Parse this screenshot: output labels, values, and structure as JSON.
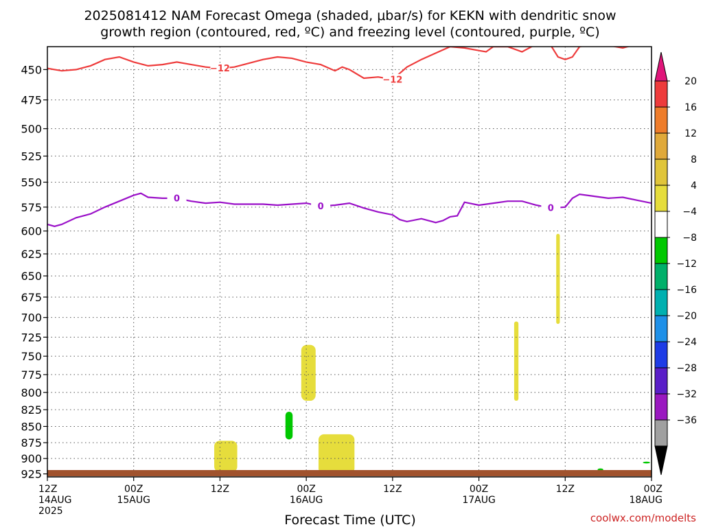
{
  "chart_data": {
    "type": "heatmap",
    "title_line1": "2025081412 NAM Forecast Omega (shaded, μbar/s) for KEKN with dendritic snow",
    "title_line2": "growth region (contoured, red, ºC) and freezing level (contoured, purple, ºC)",
    "xlabel": "Forecast Time (UTC)",
    "ylabel": "",
    "y_axis": {
      "scale": "log-pressure",
      "range_hPa": [
        930,
        432
      ],
      "ticks": [
        450,
        475,
        500,
        525,
        550,
        575,
        600,
        625,
        650,
        675,
        700,
        725,
        750,
        775,
        800,
        825,
        850,
        875,
        900,
        925
      ]
    },
    "x_axis": {
      "range_hours": [
        0,
        84
      ],
      "ticks": [
        {
          "hour": 0,
          "lines": [
            "12Z",
            "14AUG",
            "2025"
          ]
        },
        {
          "hour": 12,
          "lines": [
            "00Z",
            "15AUG"
          ]
        },
        {
          "hour": 24,
          "lines": [
            "12Z"
          ]
        },
        {
          "hour": 36,
          "lines": [
            "00Z",
            "16AUG"
          ]
        },
        {
          "hour": 48,
          "lines": [
            "12Z"
          ]
        },
        {
          "hour": 60,
          "lines": [
            "00Z",
            "17AUG"
          ]
        },
        {
          "hour": 72,
          "lines": [
            "12Z"
          ]
        },
        {
          "hour": 84,
          "lines": [
            "00Z",
            "18AUG"
          ]
        }
      ]
    },
    "grid": true,
    "colorbar": {
      "placement": "right",
      "labels": [
        "20",
        "16",
        "12",
        "8",
        "4",
        "−4",
        "−8",
        "−12",
        "−16",
        "−20",
        "−24",
        "−28",
        "−32",
        "−36"
      ],
      "top_color": "#e0157a",
      "bottom_color": "#000000",
      "bands": [
        "#ee3b3b",
        "#ee7c2a",
        "#e0a93a",
        "#e0c53a",
        "#e6dd3c",
        "#ffffff",
        "#00c800",
        "#00b06a",
        "#00b0b0",
        "#1e90e8",
        "#1e3ce6",
        "#5a1ec8",
        "#9a18c0",
        "#a0a0a0"
      ]
    },
    "contour_dgz": {
      "name": "-12",
      "color": "#ee3b3b",
      "label": "−12",
      "points": [
        [
          0,
          449
        ],
        [
          2,
          451
        ],
        [
          4,
          450
        ],
        [
          6,
          447
        ],
        [
          8,
          442
        ],
        [
          10,
          440
        ],
        [
          12,
          444
        ],
        [
          14,
          447
        ],
        [
          16,
          446
        ],
        [
          18,
          444
        ],
        [
          20,
          446
        ],
        [
          22,
          448
        ],
        [
          24,
          449
        ],
        [
          26,
          448
        ],
        [
          28,
          445
        ],
        [
          30,
          442
        ],
        [
          32,
          440
        ],
        [
          34,
          441
        ],
        [
          36,
          444
        ],
        [
          38,
          446
        ],
        [
          40,
          451
        ],
        [
          41,
          448
        ],
        [
          42,
          450
        ],
        [
          44,
          457
        ],
        [
          46,
          456
        ],
        [
          48,
          458
        ],
        [
          50,
          448
        ],
        [
          52,
          442
        ],
        [
          54,
          437
        ],
        [
          56,
          432
        ],
        [
          58,
          433
        ],
        [
          60,
          435
        ],
        [
          61,
          436
        ],
        [
          62,
          432
        ],
        [
          64,
          432
        ],
        [
          66,
          436
        ],
        [
          68,
          430
        ],
        [
          70,
          431
        ],
        [
          71,
          440
        ],
        [
          72,
          442
        ],
        [
          73,
          440
        ],
        [
          74,
          432
        ],
        [
          76,
          430
        ],
        [
          78,
          431
        ],
        [
          80,
          433
        ],
        [
          82,
          430
        ],
        [
          84,
          431
        ]
      ]
    },
    "contour_freezing": {
      "name": "0",
      "color": "#9a10c8",
      "label": "0",
      "points": [
        [
          0,
          593
        ],
        [
          1,
          595
        ],
        [
          2,
          593
        ],
        [
          4,
          586
        ],
        [
          6,
          582
        ],
        [
          8,
          575
        ],
        [
          10,
          569
        ],
        [
          12,
          563
        ],
        [
          13,
          561
        ],
        [
          14,
          565
        ],
        [
          16,
          566
        ],
        [
          18,
          566
        ],
        [
          20,
          569
        ],
        [
          22,
          571
        ],
        [
          24,
          570
        ],
        [
          26,
          572
        ],
        [
          28,
          572
        ],
        [
          30,
          572
        ],
        [
          32,
          573
        ],
        [
          34,
          572
        ],
        [
          36,
          571
        ],
        [
          38,
          574
        ],
        [
          40,
          573
        ],
        [
          42,
          571
        ],
        [
          44,
          576
        ],
        [
          46,
          580
        ],
        [
          48,
          583
        ],
        [
          49,
          588
        ],
        [
          50,
          590
        ],
        [
          52,
          587
        ],
        [
          54,
          591
        ],
        [
          55,
          589
        ],
        [
          56,
          585
        ],
        [
          57,
          584
        ],
        [
          58,
          570
        ],
        [
          60,
          573
        ],
        [
          62,
          571
        ],
        [
          64,
          569
        ],
        [
          66,
          569
        ],
        [
          68,
          573
        ],
        [
          70,
          576
        ],
        [
          72,
          575
        ],
        [
          73,
          566
        ],
        [
          74,
          562
        ],
        [
          76,
          564
        ],
        [
          78,
          566
        ],
        [
          80,
          565
        ],
        [
          82,
          568
        ],
        [
          84,
          571
        ],
        [
          86,
          578
        ],
        [
          87,
          578
        ]
      ]
    },
    "omega_areas": [
      {
        "value": 4,
        "color": "#e6dd3c",
        "center_hour": 24.8,
        "hour_halfwidth": 1.6,
        "p_top": 872,
        "p_bottom": 922
      },
      {
        "value": 4,
        "color": "#e6dd3c",
        "center_hour": 40.2,
        "hour_halfwidth": 2.5,
        "p_top": 862,
        "p_bottom": 925
      },
      {
        "value": 4,
        "color": "#e6dd3c",
        "center_hour": 36.3,
        "hour_halfwidth": 1.0,
        "p_top": 735,
        "p_bottom": 812
      },
      {
        "value": 4,
        "color": "#e6dd3c",
        "center_hour": 65.2,
        "hour_halfwidth": 0.3,
        "p_top": 705,
        "p_bottom": 812
      },
      {
        "value": 4,
        "color": "#e6dd3c",
        "center_hour": 71.0,
        "hour_halfwidth": 0.25,
        "p_top": 603,
        "p_bottom": 708
      },
      {
        "value": -8,
        "color": "#00c800",
        "center_hour": 33.6,
        "hour_halfwidth": 0.5,
        "p_top": 828,
        "p_bottom": 870
      },
      {
        "value": -8,
        "color": "#00c800",
        "center_hour": 76.9,
        "hour_halfwidth": 0.4,
        "p_top": 916,
        "p_bottom": 920
      },
      {
        "value": -8,
        "color": "#00c800",
        "center_hour": 83.3,
        "hour_halfwidth": 0.5,
        "p_top": 905,
        "p_bottom": 908
      }
    ],
    "terrain_color": "#a0522d",
    "credit": "coolwx.com/modelts"
  }
}
